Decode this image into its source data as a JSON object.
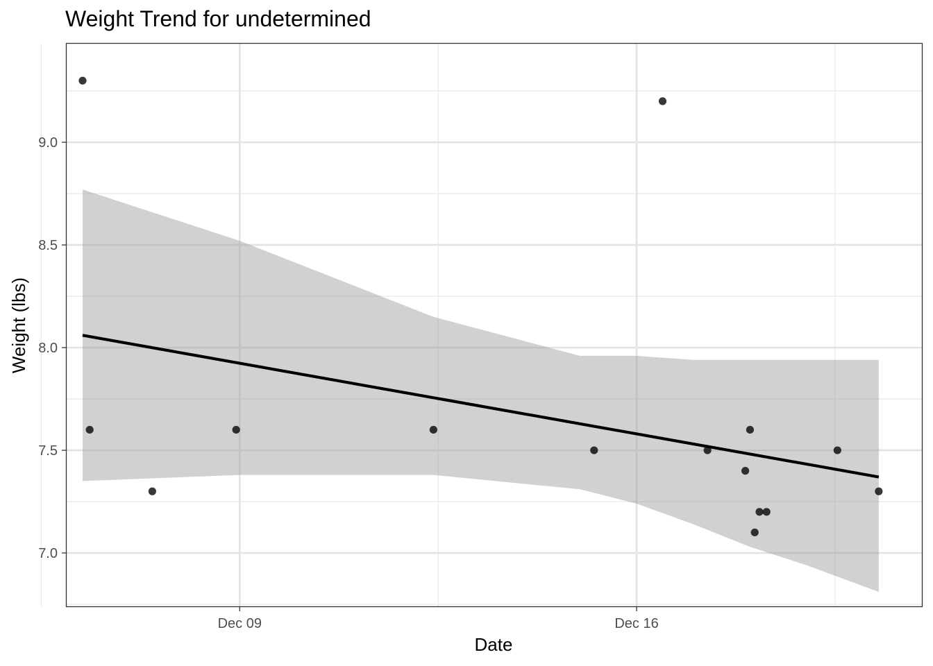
{
  "chart_data": {
    "type": "scatter",
    "title": "Weight Trend for undetermined",
    "xlabel": "Date",
    "ylabel": "Weight (lbs)",
    "xlim": [
      "2023-12-05T22:45",
      "2023-12-21T00:45"
    ],
    "ylim": [
      6.74,
      9.48
    ],
    "x_ticks": [
      {
        "value": "2023-12-09",
        "label": "Dec 09"
      },
      {
        "value": "2023-12-16",
        "label": "Dec 16"
      }
    ],
    "x_minor_ticks": [
      "2023-12-05T12:00",
      "2023-12-12T12:00",
      "2023-12-19T12:00"
    ],
    "y_ticks": [
      7.0,
      7.5,
      8.0,
      8.5,
      9.0
    ],
    "y_tick_labels": [
      "7.0",
      "7.5",
      "8.0",
      "8.5",
      "9.0"
    ],
    "y_minor_ticks": [
      6.75,
      7.25,
      7.75,
      8.25,
      8.75,
      9.25
    ],
    "grid": true,
    "points": [
      {
        "x": "2023-12-06T05:30",
        "y": 9.3
      },
      {
        "x": "2023-12-06T08:30",
        "y": 7.6
      },
      {
        "x": "2023-12-07T11:00",
        "y": 7.3
      },
      {
        "x": "2023-12-08T22:30",
        "y": 7.6
      },
      {
        "x": "2023-12-12T10:00",
        "y": 7.6
      },
      {
        "x": "2023-12-15T06:00",
        "y": 7.5
      },
      {
        "x": "2023-12-16T11:00",
        "y": 9.2
      },
      {
        "x": "2023-12-17T06:00",
        "y": 7.5
      },
      {
        "x": "2023-12-17T22:00",
        "y": 7.4
      },
      {
        "x": "2023-12-18T00:00",
        "y": 7.6
      },
      {
        "x": "2023-12-18T02:00",
        "y": 7.1
      },
      {
        "x": "2023-12-18T04:00",
        "y": 7.2
      },
      {
        "x": "2023-12-18T07:00",
        "y": 7.2
      },
      {
        "x": "2023-12-19T13:00",
        "y": 7.5
      },
      {
        "x": "2023-12-20T06:30",
        "y": 7.3
      }
    ],
    "trend_line": {
      "method": "linear",
      "color": "#000000",
      "x": [
        "2023-12-06T05:30",
        "2023-12-20T06:30"
      ],
      "y": [
        8.06,
        7.37
      ]
    },
    "confidence_band": {
      "color": "#999999",
      "x": [
        "2023-12-06T05:30",
        "2023-12-09T00:00",
        "2023-12-12T10:00",
        "2023-12-15T00:00",
        "2023-12-16T00:00",
        "2023-12-17T00:00",
        "2023-12-18T00:00",
        "2023-12-19T00:00",
        "2023-12-20T06:30"
      ],
      "upper": [
        8.77,
        8.52,
        8.15,
        7.96,
        7.96,
        7.94,
        7.94,
        7.94,
        7.94
      ],
      "lower": [
        7.35,
        7.38,
        7.38,
        7.31,
        7.24,
        7.14,
        7.03,
        6.94,
        6.81
      ]
    }
  }
}
